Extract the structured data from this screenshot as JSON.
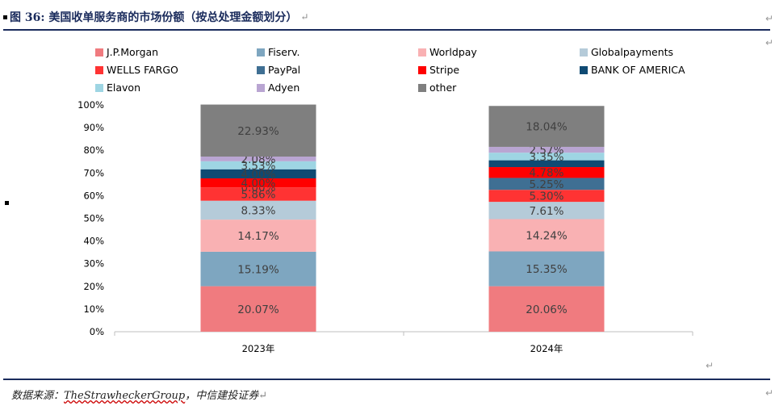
{
  "header": {
    "title": "图 36:  美国收单服务商的市场份额（按总处理金额划分）",
    "return_mark": "↵"
  },
  "source": {
    "prefix": "数据来源：",
    "name": "TheStrawheckerGroup",
    "suffix": "，中信建投证券",
    "return_mark": "↵"
  },
  "margin_marks": [
    "↵",
    "↵",
    "↵",
    "↵"
  ],
  "chart_data": {
    "type": "bar",
    "stacked": true,
    "percent": true,
    "categories": [
      "2023年",
      "2024年"
    ],
    "ylim": [
      0,
      100
    ],
    "yticks": [
      "0%",
      "10%",
      "20%",
      "30%",
      "40%",
      "50%",
      "60%",
      "70%",
      "80%",
      "90%",
      "100%"
    ],
    "legend_position": "top",
    "series": [
      {
        "name": "J.P.Morgan",
        "color": "#f07b7f",
        "values": [
          20.07,
          20.06
        ],
        "labels": [
          "20.07%",
          "20.06%"
        ]
      },
      {
        "name": "Fiserv.",
        "color": "#7ea6c0",
        "values": [
          15.19,
          15.35
        ],
        "labels": [
          "15.19%",
          "15.35%"
        ]
      },
      {
        "name": "Worldpay",
        "color": "#f9b1b3",
        "values": [
          14.17,
          14.24
        ],
        "labels": [
          "14.17%",
          "14.24%"
        ]
      },
      {
        "name": "Globalpayments",
        "color": "#b5cbd9",
        "values": [
          8.33,
          7.61
        ],
        "labels": [
          "8.33%",
          "7.61%"
        ]
      },
      {
        "name": "WELLS FARGO",
        "color": "#ff3333",
        "values": [
          5.86,
          5.3
        ],
        "labels": [
          "5.86%",
          "5.30%"
        ]
      },
      {
        "name": "PayPal",
        "color": "#3f6f93",
        "values": [
          0.0,
          5.25
        ],
        "labels": [
          "0.00%",
          "5.25%"
        ]
      },
      {
        "name": "Stripe",
        "color": "#ff0000",
        "values": [
          4.0,
          4.78
        ],
        "labels": [
          "4.00%",
          "4.78%"
        ]
      },
      {
        "name": "BANK OF AMERICA",
        "color": "#0f4a73",
        "values": [
          4.0,
          3.0
        ],
        "labels": [
          "4.00%",
          ""
        ]
      },
      {
        "name": "Elavon",
        "color": "#9ed5e3",
        "values": [
          3.53,
          3.35
        ],
        "labels": [
          "3.53%",
          "3.35%"
        ]
      },
      {
        "name": "Adyen",
        "color": "#b9a5d2",
        "values": [
          2.08,
          2.57
        ],
        "labels": [
          "2.08%",
          "2.57%"
        ]
      },
      {
        "name": "other",
        "color": "#7f7f7f",
        "values": [
          22.93,
          18.04
        ],
        "labels": [
          "22.93%",
          "18.04%"
        ]
      }
    ]
  }
}
